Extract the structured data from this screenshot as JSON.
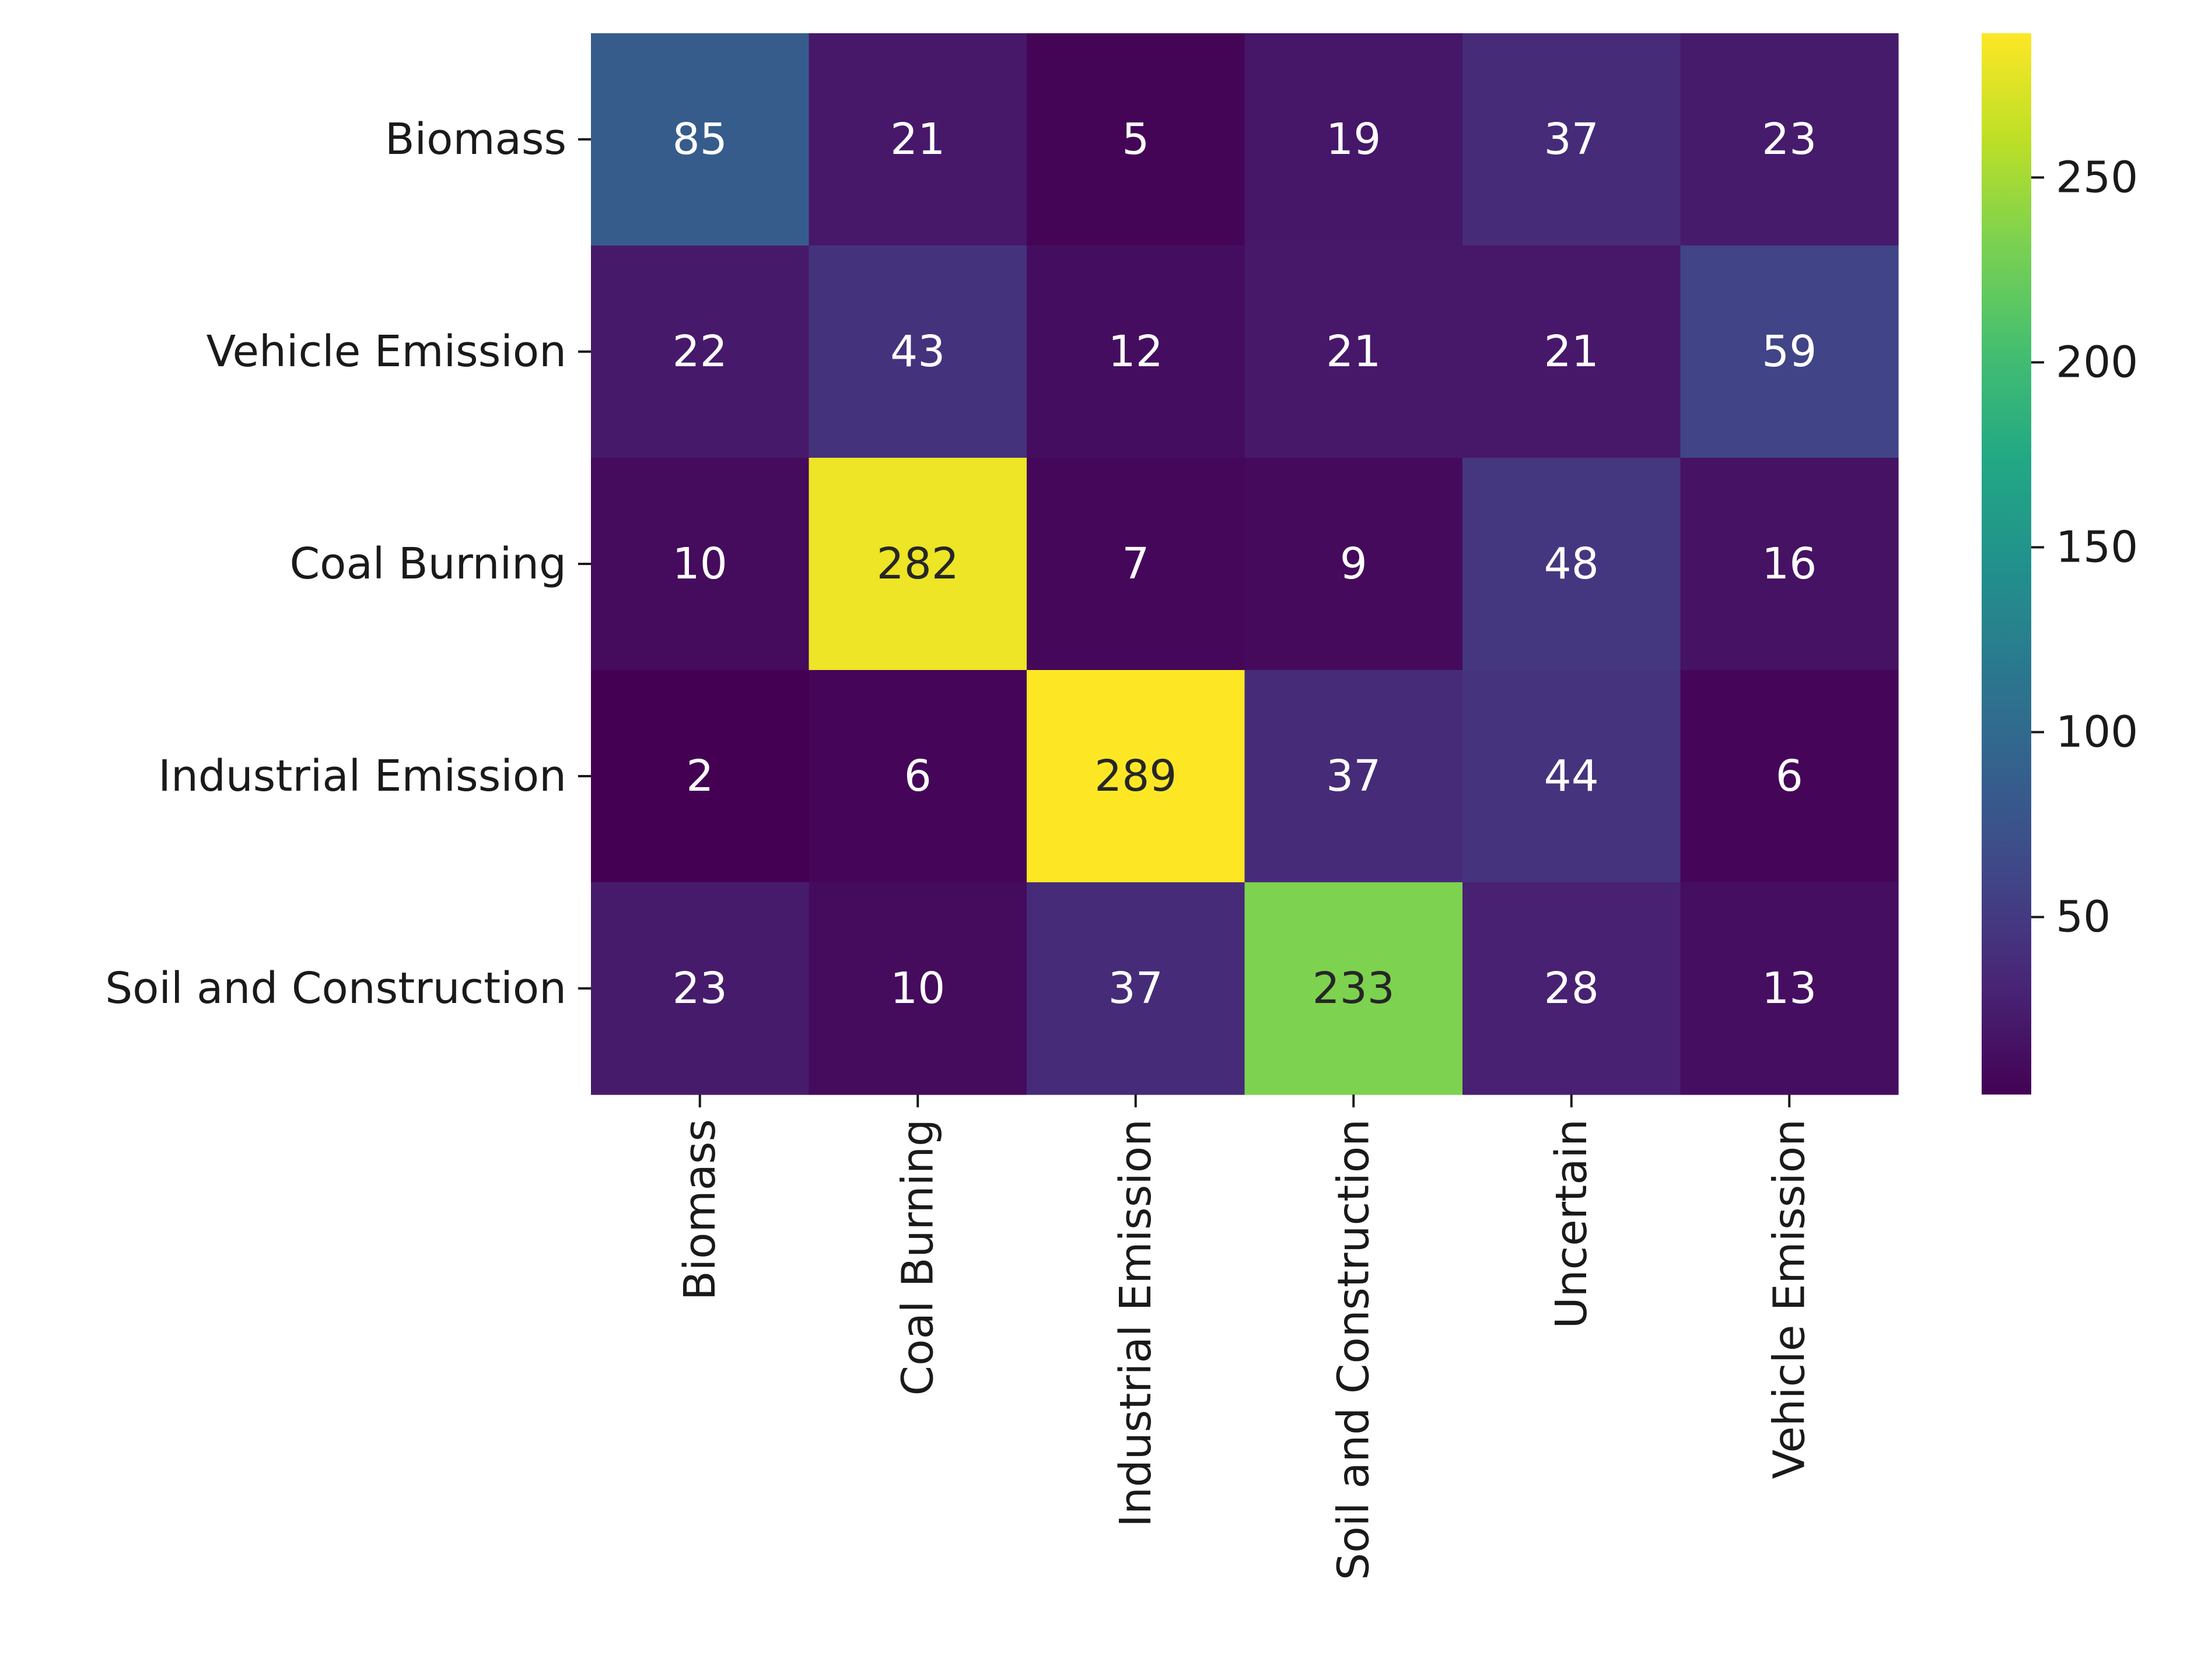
{
  "chart_data": {
    "type": "heatmap",
    "title": "",
    "xlabel": "",
    "ylabel": "",
    "rows": [
      "Biomass",
      "Vehicle Emission",
      "Coal Burning",
      "Industrial Emission",
      "Soil and Construction"
    ],
    "columns": [
      "Biomass",
      "Coal Burning",
      "Industrial Emission",
      "Soil and Construction",
      "Uncertain",
      "Vehicle Emission"
    ],
    "values": [
      [
        85,
        21,
        5,
        19,
        37,
        23
      ],
      [
        22,
        43,
        12,
        21,
        21,
        59
      ],
      [
        10,
        282,
        7,
        9,
        48,
        16
      ],
      [
        2,
        6,
        289,
        37,
        44,
        6
      ],
      [
        23,
        10,
        37,
        233,
        28,
        13
      ]
    ],
    "colormap": "viridis",
    "colorbar": {
      "vmin": 2,
      "vmax": 289,
      "ticks": [
        50,
        100,
        150,
        200,
        250
      ],
      "tick_labels": [
        "50",
        "100",
        "150",
        "200",
        "250"
      ]
    },
    "annotation_colors": {
      "light": "#ffffff",
      "dark": "#262626"
    },
    "grid": false
  }
}
